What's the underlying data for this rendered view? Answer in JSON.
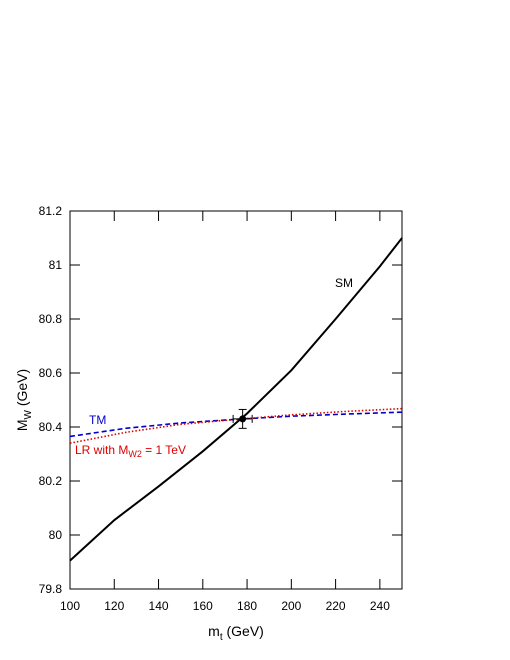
{
  "chart_data": {
    "type": "line",
    "xlabel": {
      "text": "m",
      "sub": "t",
      "after": " (GeV)"
    },
    "ylabel": {
      "text": "M",
      "sub": "W",
      "after": " (GeV)"
    },
    "xlim": [
      100,
      250
    ],
    "xticks": [
      100,
      120,
      140,
      160,
      180,
      200,
      220,
      240
    ],
    "ylim": [
      79.8,
      81.2
    ],
    "yticks": [
      79.8,
      80,
      80.2,
      80.4,
      80.6,
      80.8,
      81,
      81.2
    ],
    "series": [
      {
        "name": "SM",
        "color": "#000000",
        "style": "solid",
        "x": [
          100,
          120,
          140,
          160,
          180,
          200,
          220,
          240,
          250
        ],
        "values": [
          79.905,
          80.055,
          80.18,
          80.31,
          80.45,
          80.61,
          80.8,
          80.995,
          81.1
        ]
      },
      {
        "name": "TM",
        "color": "#0000cc",
        "style": "dashed",
        "x": [
          100,
          125,
          150,
          178,
          200,
          225,
          250
        ],
        "values": [
          80.365,
          80.395,
          80.415,
          80.43,
          80.44,
          80.448,
          80.455
        ]
      },
      {
        "name": "LR with M",
        "name_sub": "W2",
        "name_after": " = 1 TeV",
        "color": "#dd0000",
        "style": "dotted",
        "x": [
          100,
          125,
          150,
          178,
          200,
          225,
          250
        ],
        "values": [
          80.34,
          80.38,
          80.41,
          80.43,
          80.445,
          80.458,
          80.468
        ]
      }
    ],
    "point": {
      "x": 178,
      "xerr": 4.3,
      "y": 80.43,
      "yerr": 0.035
    }
  }
}
